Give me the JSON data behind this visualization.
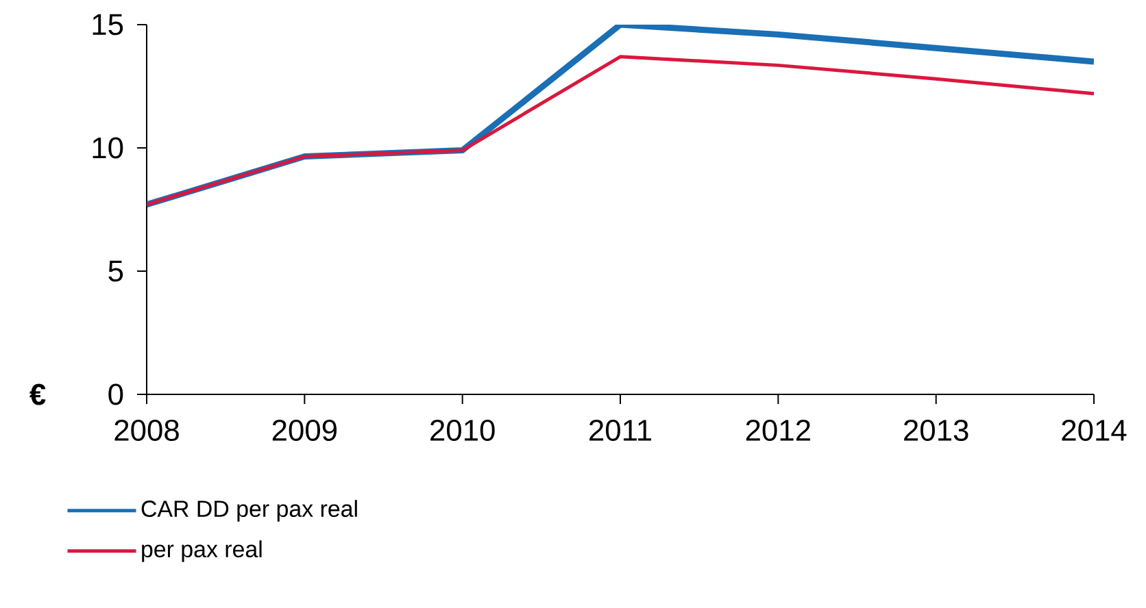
{
  "chart_data": {
    "type": "line",
    "ylabel": "€",
    "x": [
      2008,
      2009,
      2010,
      2011,
      2012,
      2013,
      2014
    ],
    "series": [
      {
        "name": "CAR DD per pax real",
        "color": "#1a6fb5",
        "values": [
          7.7,
          9.65,
          9.9,
          15.0,
          14.6,
          14.05,
          13.5
        ]
      },
      {
        "name": "per pax real",
        "color": "#d9183e",
        "values": [
          7.7,
          9.65,
          9.9,
          13.7,
          13.35,
          12.8,
          12.2
        ]
      }
    ],
    "xlim": [
      2008,
      2014
    ],
    "xticks": [
      2008,
      2009,
      2010,
      2011,
      2012,
      2013,
      2014
    ],
    "ylim": [
      0,
      15
    ],
    "yticks": [
      0,
      5,
      10,
      15
    ],
    "grid": false,
    "legend": "bottom left",
    "marker": "none",
    "line_style": "solid"
  }
}
